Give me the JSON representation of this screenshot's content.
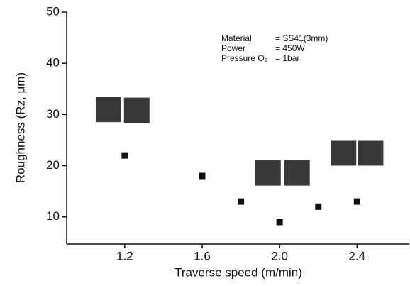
{
  "chart_data": {
    "type": "scatter",
    "x_label": "Traverse speed (m/min)",
    "y_label": "Roughness (Rz, μm)",
    "annotations": [
      {
        "label": "Material",
        "value": "= SS41(3mm)"
      },
      {
        "label": "Power",
        "value": "= 450W"
      },
      {
        "label": "Pressure O₂",
        "value": "= 1bar"
      }
    ],
    "series": [
      {
        "color": "#111111",
        "marker_size": 9,
        "x": [
          1.2,
          1.6,
          1.8,
          2.0,
          2.2,
          2.4
        ],
        "values": [
          22,
          18,
          13,
          9,
          12,
          13
        ]
      },
      {
        "color": "#222222",
        "marker_size": 36,
        "x": [
          1.116,
          1.262,
          1.94,
          2.09,
          2.33,
          2.47
        ],
        "values": [
          31,
          30.8,
          18.6,
          18.6,
          22.5,
          22.5
        ]
      }
    ],
    "xlim": [
      0.9,
      2.67
    ],
    "ylim": [
      4.7,
      50
    ],
    "xticks": [
      1.2,
      1.6,
      {
        "value": 2,
        "label": "2.0"
      },
      2.4
    ],
    "yticks": [
      10,
      20,
      30,
      40,
      50
    ]
  }
}
